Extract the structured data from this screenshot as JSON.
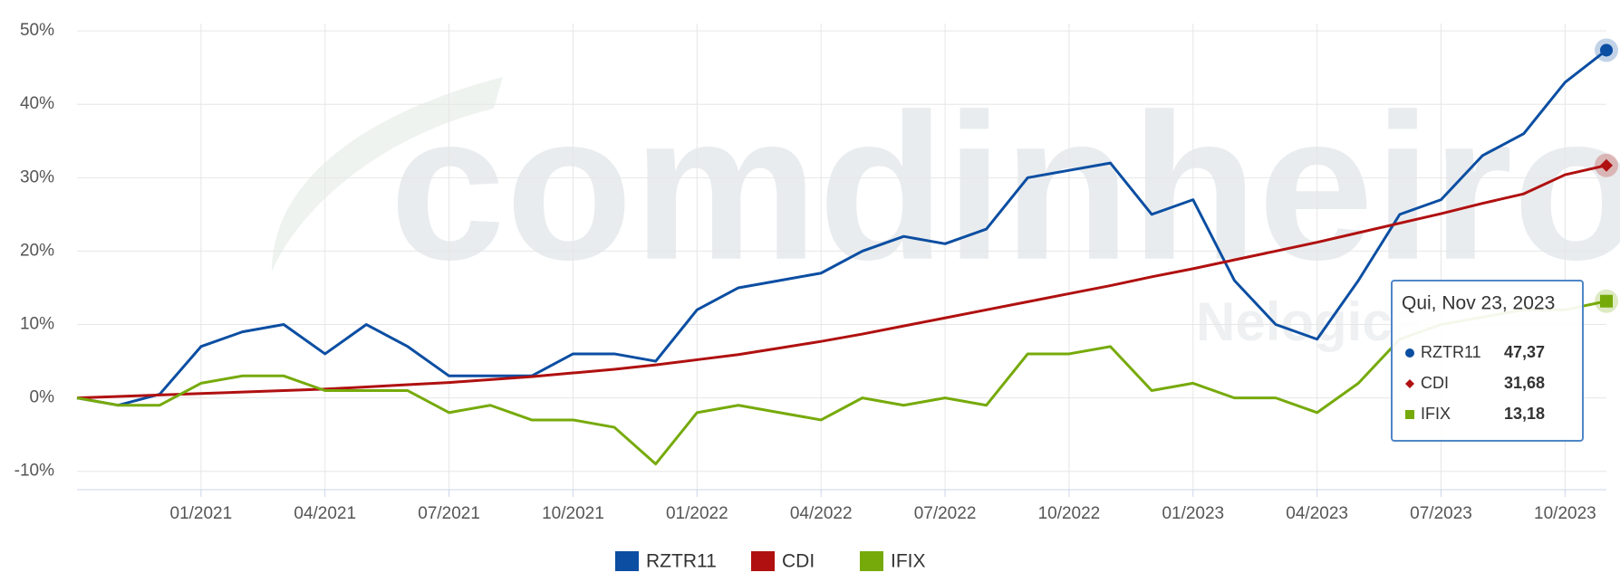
{
  "chart_data": {
    "type": "line",
    "watermark": "comdinheiro",
    "watermark_sub": "Nelogica",
    "x": [
      "10/2020",
      "11/2020",
      "12/2020",
      "01/2021",
      "02/2021",
      "03/2021",
      "04/2021",
      "05/2021",
      "06/2021",
      "07/2021",
      "08/2021",
      "09/2021",
      "10/2021",
      "11/2021",
      "12/2021",
      "01/2022",
      "02/2022",
      "03/2022",
      "04/2022",
      "05/2022",
      "06/2022",
      "07/2022",
      "08/2022",
      "09/2022",
      "10/2022",
      "11/2022",
      "12/2022",
      "01/2023",
      "02/2023",
      "03/2023",
      "04/2023",
      "05/2023",
      "06/2023",
      "07/2023",
      "08/2023",
      "09/2023",
      "10/2023",
      "11/2023"
    ],
    "xticks": [
      "01/2021",
      "04/2021",
      "07/2021",
      "10/2021",
      "01/2022",
      "04/2022",
      "07/2022",
      "10/2022",
      "01/2023",
      "04/2023",
      "07/2023",
      "10/2023"
    ],
    "ylim": [
      -12.5,
      51
    ],
    "yticks": [
      {
        "value": -10,
        "label": "-10%"
      },
      {
        "value": 0,
        "label": "0%"
      },
      {
        "value": 10,
        "label": "10%"
      },
      {
        "value": 20,
        "label": "20%"
      },
      {
        "value": 30,
        "label": "30%"
      },
      {
        "value": 40,
        "label": "40%"
      },
      {
        "value": 50,
        "label": "50%"
      }
    ],
    "grid": true,
    "legend": "bottom",
    "series": [
      {
        "name": "RZTR11",
        "color": "#0b4ea2",
        "marker": "circle",
        "values": [
          0,
          -1,
          0.5,
          7,
          9,
          10,
          6,
          10,
          7,
          3,
          3,
          3,
          6,
          6,
          5,
          12,
          15,
          16,
          17,
          20,
          22,
          21,
          23,
          30,
          31,
          32,
          25,
          27,
          16,
          10,
          8,
          16,
          25,
          27,
          33,
          36,
          43,
          47.37
        ]
      },
      {
        "name": "CDI",
        "color": "#b01010",
        "marker": "diamond",
        "values": [
          0,
          0.2,
          0.4,
          0.6,
          0.8,
          1.0,
          1.2,
          1.5,
          1.8,
          2.1,
          2.5,
          2.9,
          3.4,
          3.9,
          4.5,
          5.2,
          5.9,
          6.8,
          7.7,
          8.7,
          9.8,
          10.9,
          12.0,
          13.1,
          14.2,
          15.3,
          16.5,
          17.6,
          18.8,
          20.0,
          21.2,
          22.5,
          23.8,
          25.1,
          26.5,
          27.8,
          30.4,
          31.68
        ]
      },
      {
        "name": "IFIX",
        "color": "#76aa0a",
        "marker": "square",
        "values": [
          0,
          -1,
          -1,
          2,
          3,
          3,
          1,
          1,
          1,
          -2,
          -1,
          -3,
          -3,
          -4,
          -9,
          -2,
          -1,
          -2,
          -3,
          0,
          -1,
          0,
          -1,
          6,
          6,
          7,
          1,
          2,
          0,
          0,
          -2,
          2,
          8,
          10,
          11,
          12,
          12,
          13.18
        ]
      }
    ],
    "tooltip": {
      "title": "Qui, Nov 23, 2023",
      "value_labels": [
        "47,37",
        "31,68",
        "13,18"
      ]
    }
  }
}
